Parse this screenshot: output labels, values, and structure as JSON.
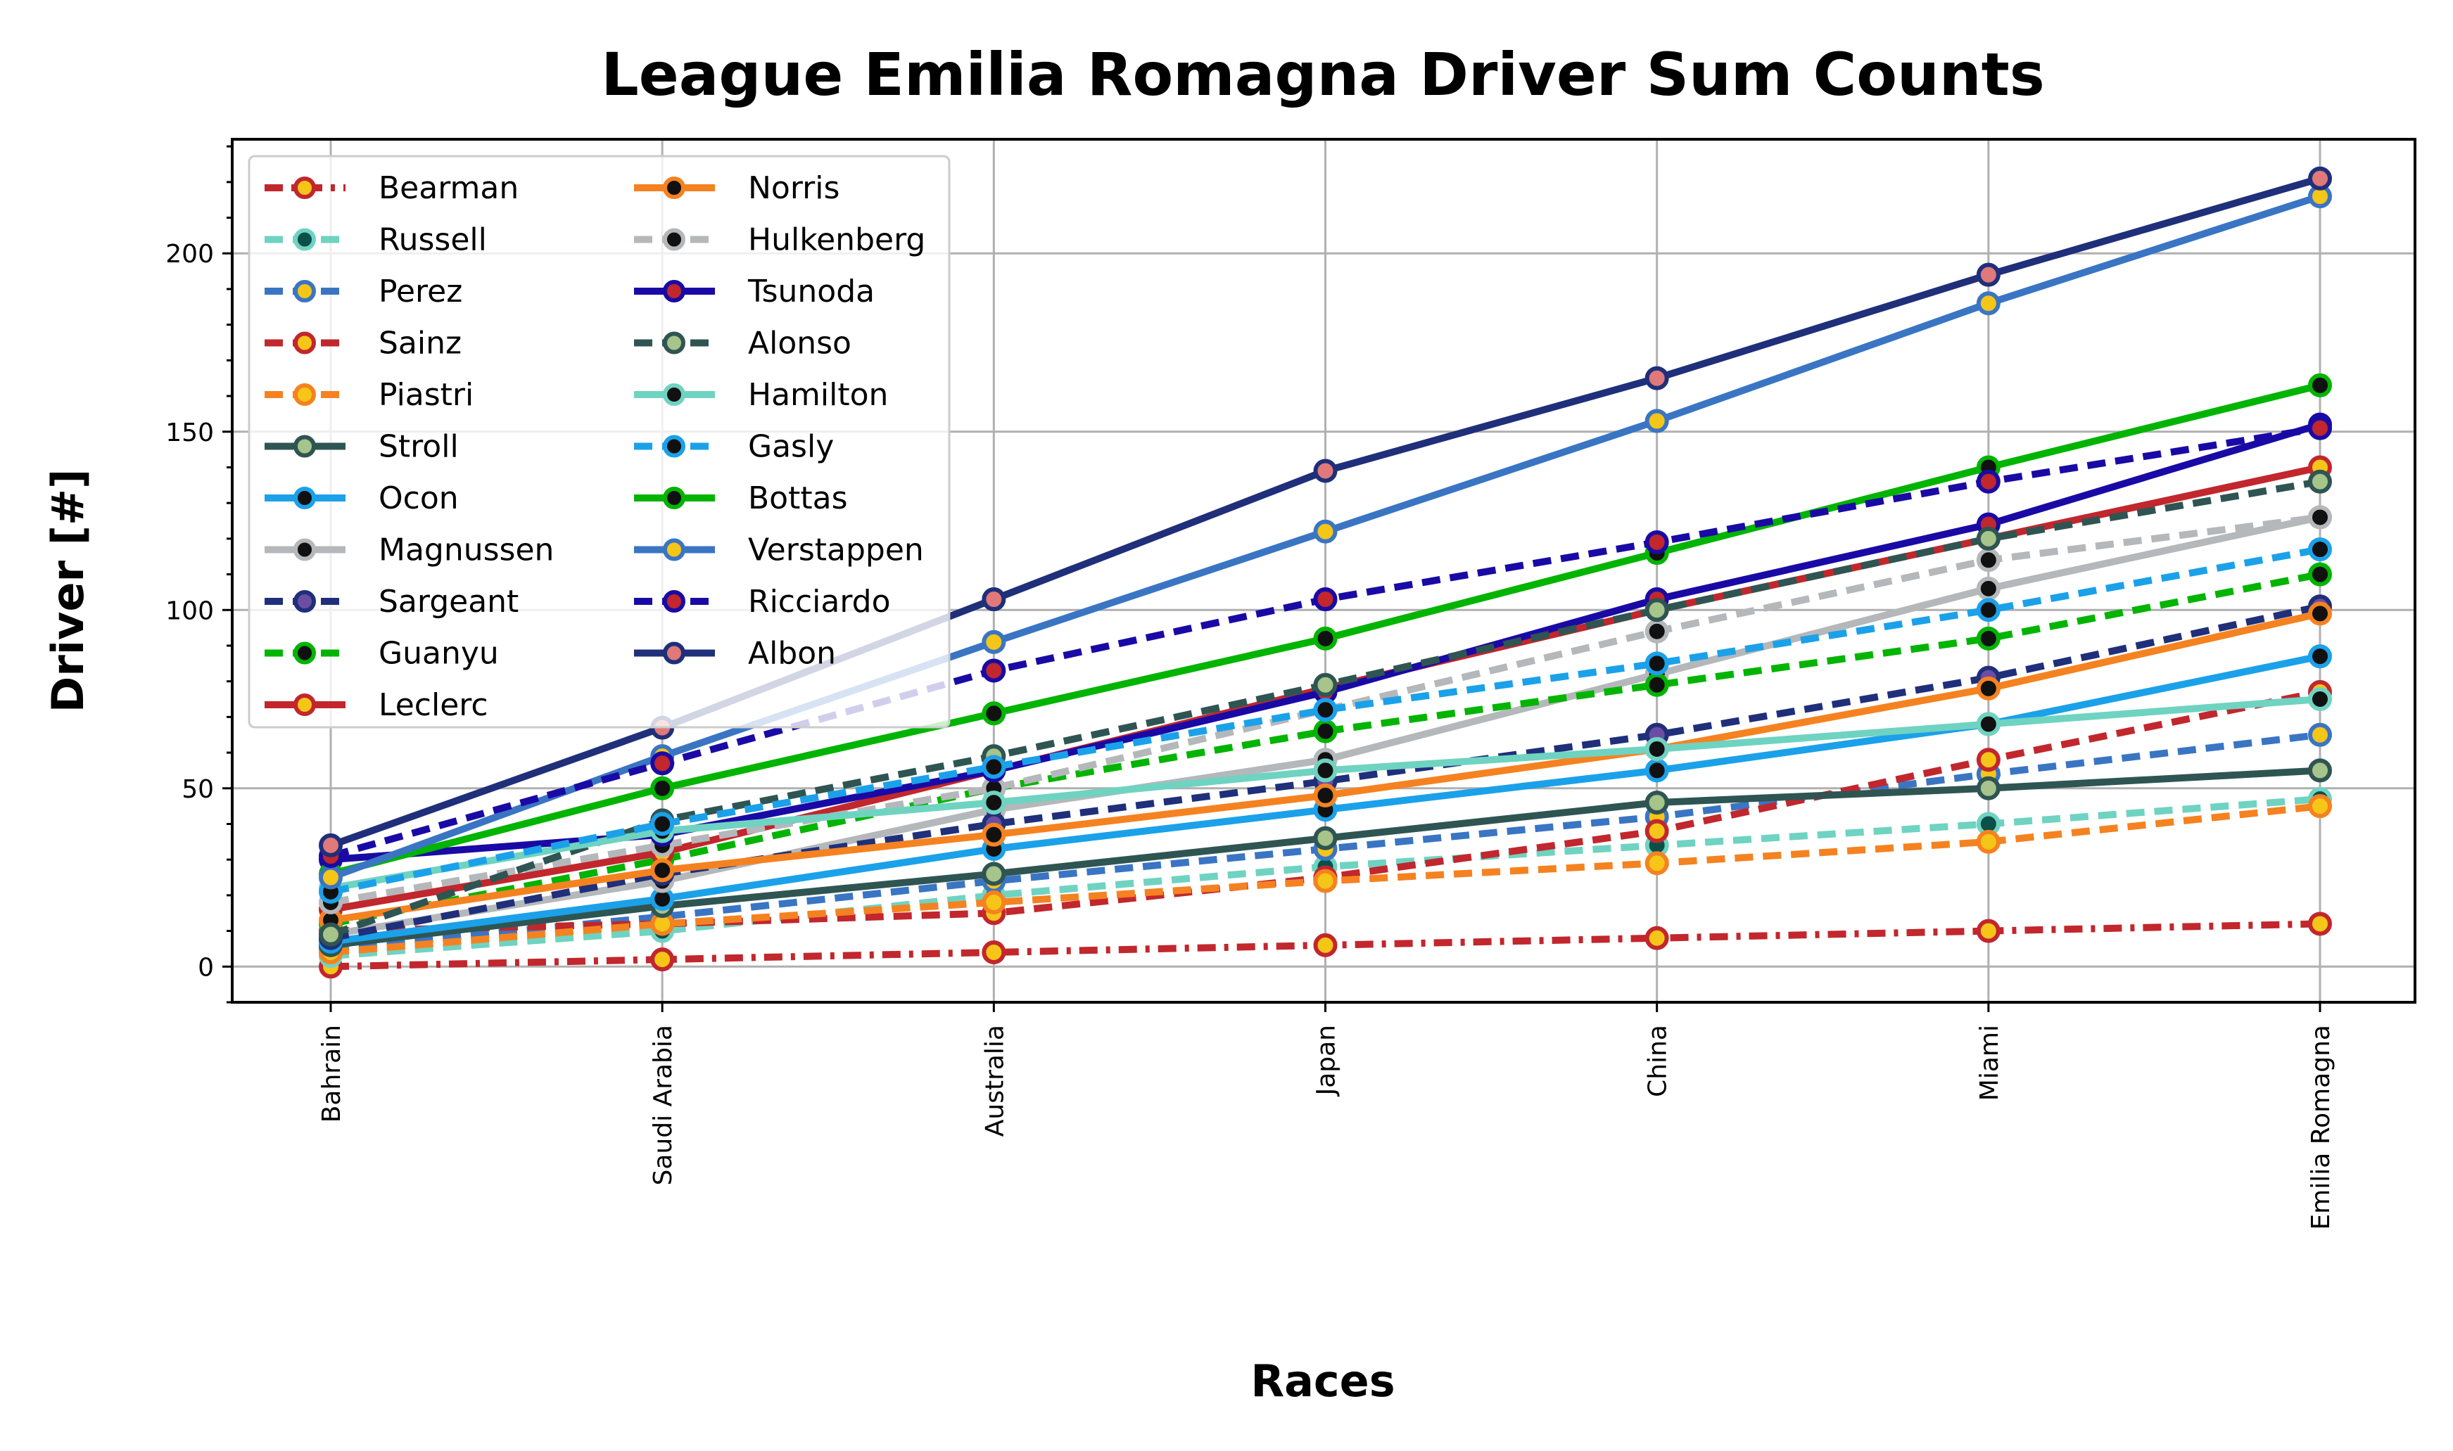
{
  "chart_data": {
    "type": "line",
    "title": "League Emilia Romagna Driver Sum Counts",
    "xlabel": "Races",
    "ylabel": "Driver [#]",
    "categories": [
      "Bahrain",
      "Saudi Arabia",
      "Australia",
      "Japan",
      "China",
      "Miami",
      "Emilia Romagna"
    ],
    "ylim": [
      -10,
      232
    ],
    "yticks": [
      0,
      50,
      100,
      150,
      200
    ],
    "grid": true,
    "legend_position": "upper-left",
    "legend_columns": 2,
    "series": [
      {
        "name": "Bearman",
        "color": "#c1272d",
        "dash": "dashdot",
        "marker_face": "#f5c518",
        "marker_edge": "#c1272d",
        "values": [
          0,
          2,
          4,
          6,
          8,
          10,
          12
        ]
      },
      {
        "name": "Russell",
        "color": "#6fd3c1",
        "dash": "dashed",
        "marker_face": "#0b4f4a",
        "marker_edge": "#6fd3c1",
        "values": [
          3,
          10,
          20,
          28,
          34,
          40,
          47
        ]
      },
      {
        "name": "Perez",
        "color": "#3a75c4",
        "dash": "dashed",
        "marker_face": "#f5c518",
        "marker_edge": "#3a75c4",
        "values": [
          5,
          14,
          24,
          33,
          42,
          54,
          65
        ]
      },
      {
        "name": "Sainz",
        "color": "#c1272d",
        "dash": "dashed",
        "marker_face": "#f5c518",
        "marker_edge": "#c1272d",
        "values": [
          10,
          12,
          15,
          25,
          38,
          58,
          77
        ]
      },
      {
        "name": "Piastri",
        "color": "#f58220",
        "dash": "dashed",
        "marker_face": "#f5c518",
        "marker_edge": "#f58220",
        "values": [
          4,
          12,
          18,
          24,
          29,
          35,
          45
        ]
      },
      {
        "name": "Stroll",
        "color": "#2f5553",
        "dash": "solid",
        "marker_face": "#a7c48a",
        "marker_edge": "#2f5553",
        "values": [
          6,
          17,
          26,
          36,
          46,
          50,
          55
        ]
      },
      {
        "name": "Ocon",
        "color": "#1ba1e9",
        "dash": "solid",
        "marker_face": "#111111",
        "marker_edge": "#1ba1e9",
        "values": [
          7,
          19,
          33,
          44,
          55,
          68,
          87
        ]
      },
      {
        "name": "Magnussen",
        "color": "#b4b8bb",
        "dash": "solid",
        "marker_face": "#111111",
        "marker_edge": "#b4b8bb",
        "values": [
          9,
          24,
          44,
          58,
          82,
          106,
          126
        ]
      },
      {
        "name": "Sargeant",
        "color": "#1f2f7a",
        "dash": "dashed",
        "marker_face": "#6b4ea3",
        "marker_edge": "#1f2f7a",
        "values": [
          8,
          26,
          40,
          52,
          65,
          81,
          101
        ]
      },
      {
        "name": "Guanyu",
        "color": "#00b400",
        "dash": "dashed",
        "marker_face": "#111111",
        "marker_edge": "#00b400",
        "values": [
          12,
          30,
          50,
          66,
          79,
          92,
          110
        ]
      },
      {
        "name": "Leclerc",
        "color": "#c1272d",
        "dash": "solid",
        "marker_face": "#f5c518",
        "marker_edge": "#c1272d",
        "values": [
          16,
          32,
          55,
          78,
          100,
          120,
          140
        ]
      },
      {
        "name": "Norris",
        "color": "#f58220",
        "dash": "solid",
        "marker_face": "#111111",
        "marker_edge": "#f58220",
        "values": [
          13,
          27,
          37,
          48,
          61,
          78,
          99
        ]
      },
      {
        "name": "Hulkenberg",
        "color": "#b4b8bb",
        "dash": "dashed",
        "marker_face": "#111111",
        "marker_edge": "#b4b8bb",
        "values": [
          18,
          34,
          50,
          72,
          94,
          114,
          126
        ]
      },
      {
        "name": "Tsunoda",
        "color": "#1a0aa5",
        "dash": "solid",
        "marker_face": "#c1272d",
        "marker_edge": "#1a0aa5",
        "values": [
          30,
          37,
          55,
          77,
          103,
          124,
          152
        ]
      },
      {
        "name": "Alonso",
        "color": "#2f5553",
        "dash": "dashed",
        "marker_face": "#a7c48a",
        "marker_edge": "#2f5553",
        "values": [
          9,
          41,
          59,
          79,
          100,
          120,
          136
        ]
      },
      {
        "name": "Hamilton",
        "color": "#6fd3c1",
        "dash": "solid",
        "marker_face": "#111111",
        "marker_edge": "#6fd3c1",
        "values": [
          22,
          38,
          46,
          55,
          61,
          68,
          75
        ]
      },
      {
        "name": "Gasly",
        "color": "#1ba1e9",
        "dash": "dashed",
        "marker_face": "#111111",
        "marker_edge": "#1ba1e9",
        "values": [
          21,
          40,
          56,
          72,
          85,
          100,
          117
        ]
      },
      {
        "name": "Bottas",
        "color": "#00b400",
        "dash": "solid",
        "marker_face": "#111111",
        "marker_edge": "#00b400",
        "values": [
          26,
          50,
          71,
          92,
          116,
          140,
          163
        ]
      },
      {
        "name": "Verstappen",
        "color": "#3a75c4",
        "dash": "solid",
        "marker_face": "#f5c518",
        "marker_edge": "#3a75c4",
        "values": [
          25,
          59,
          91,
          122,
          153,
          186,
          216
        ]
      },
      {
        "name": "Ricciardo",
        "color": "#1a0aa5",
        "dash": "dashed",
        "marker_face": "#c1272d",
        "marker_edge": "#1a0aa5",
        "values": [
          31,
          57,
          83,
          103,
          119,
          136,
          151
        ]
      },
      {
        "name": "Albon",
        "color": "#1f2f7a",
        "dash": "solid",
        "marker_face": "#e0797a",
        "marker_edge": "#1f2f7a",
        "values": [
          34,
          67,
          103,
          139,
          165,
          194,
          221
        ]
      }
    ]
  }
}
